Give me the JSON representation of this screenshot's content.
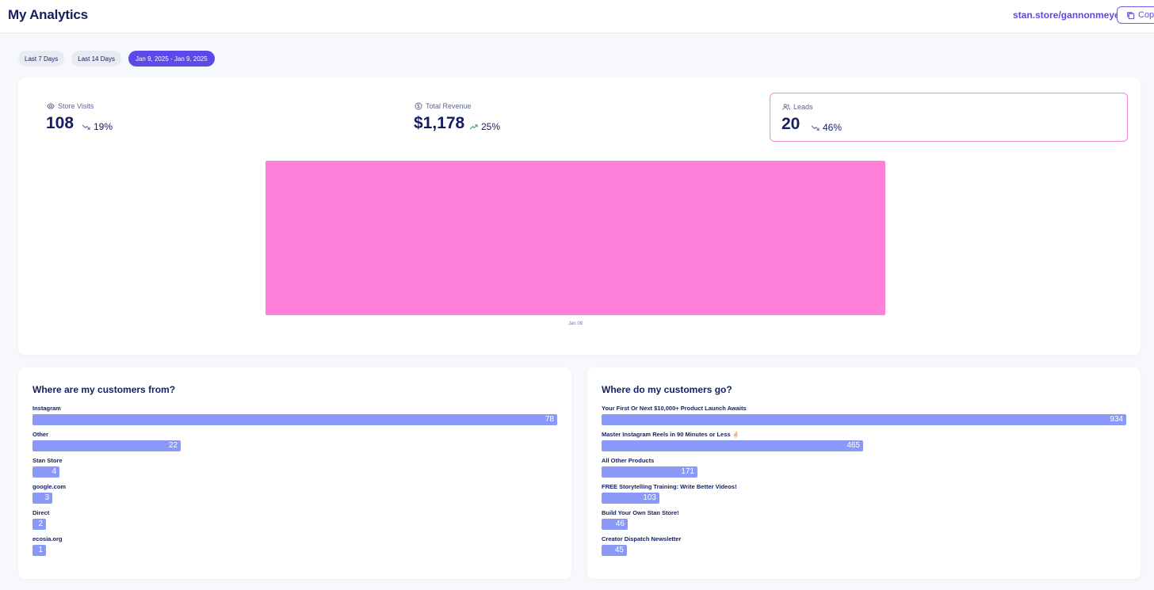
{
  "header": {
    "title": "My Analytics",
    "store_link": "stan.store/gannonmeyer",
    "copy_label": "Copy"
  },
  "filters": [
    {
      "label": "Last 7 Days",
      "active": false
    },
    {
      "label": "Last 14 Days",
      "active": false
    },
    {
      "label": "Jan 9, 2025 - Jan 9, 2025",
      "active": true
    }
  ],
  "metrics": [
    {
      "label": "Store Visits",
      "icon": "eye-icon",
      "value": "108",
      "change": "19%",
      "direction": "down",
      "selected": false
    },
    {
      "label": "Total Revenue",
      "icon": "dollar-circle-icon",
      "value": "$1,178",
      "change": "25%",
      "direction": "up",
      "selected": false
    },
    {
      "label": "Leads",
      "icon": "users-icon",
      "value": "20",
      "change": "46%",
      "direction": "down",
      "selected": true
    }
  ],
  "chart_data": {
    "type": "bar",
    "categories": [
      "Jan 09"
    ],
    "values": [
      20
    ],
    "color": "#ff80d9"
  },
  "sources": {
    "title": "Where are my customers from?",
    "items": [
      {
        "label": "Instagram",
        "value": 78
      },
      {
        "label": "Other",
        "value": 22
      },
      {
        "label": "Stan Store",
        "value": 4
      },
      {
        "label": "google.com",
        "value": 3
      },
      {
        "label": "Direct",
        "value": 2
      },
      {
        "label": "ecosia.org",
        "value": 1
      }
    ]
  },
  "destinations": {
    "title": "Where do my customers go?",
    "items": [
      {
        "label": "Your First Or Next $10,000+ Product Launch Awaits",
        "value": 934
      },
      {
        "label": "Master Instagram Reels in 90 Minutes or Less 🤞🏻",
        "value": 465
      },
      {
        "label": "All Other Products",
        "value": 171
      },
      {
        "label": "FREE Storytelling Training: Write Better Videos!",
        "value": 103
      },
      {
        "label": "Build Your Own Stan Store!",
        "value": 46
      },
      {
        "label": "Creator Dispatch Newsletter",
        "value": 45
      }
    ]
  },
  "colors": {
    "accent": "#5d48e8",
    "chart_pink": "#ff80d9",
    "list_bar": "#8a99f7",
    "trend_up": "#1aa37a",
    "trend_down": "#5c6690"
  }
}
